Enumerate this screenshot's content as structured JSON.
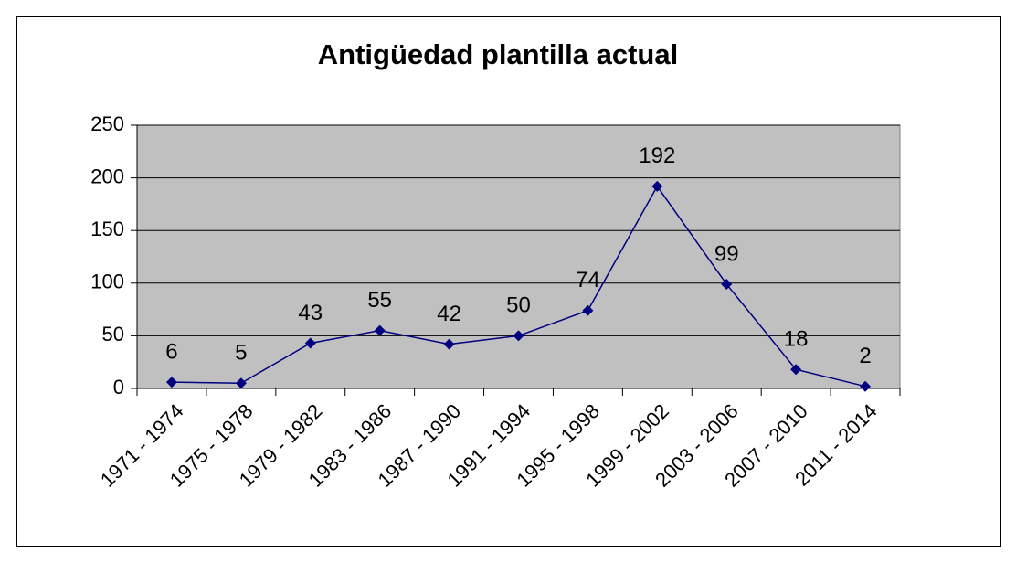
{
  "chart_data": {
    "type": "line",
    "title": "Antigüedad plantilla actual",
    "categories": [
      "1971 - 1974",
      "1975 - 1978",
      "1979 - 1982",
      "1983 - 1986",
      "1987 - 1990",
      "1991 - 1994",
      "1995 - 1998",
      "1999 - 2002",
      "2003 - 2006",
      "2007 - 2010",
      "2011 - 2014"
    ],
    "values": [
      6,
      5,
      43,
      55,
      42,
      50,
      74,
      192,
      99,
      18,
      2
    ],
    "color": "#000080",
    "ylim": [
      0,
      250
    ],
    "yticks": [
      0,
      50,
      100,
      150,
      200,
      250
    ],
    "grid": true
  }
}
